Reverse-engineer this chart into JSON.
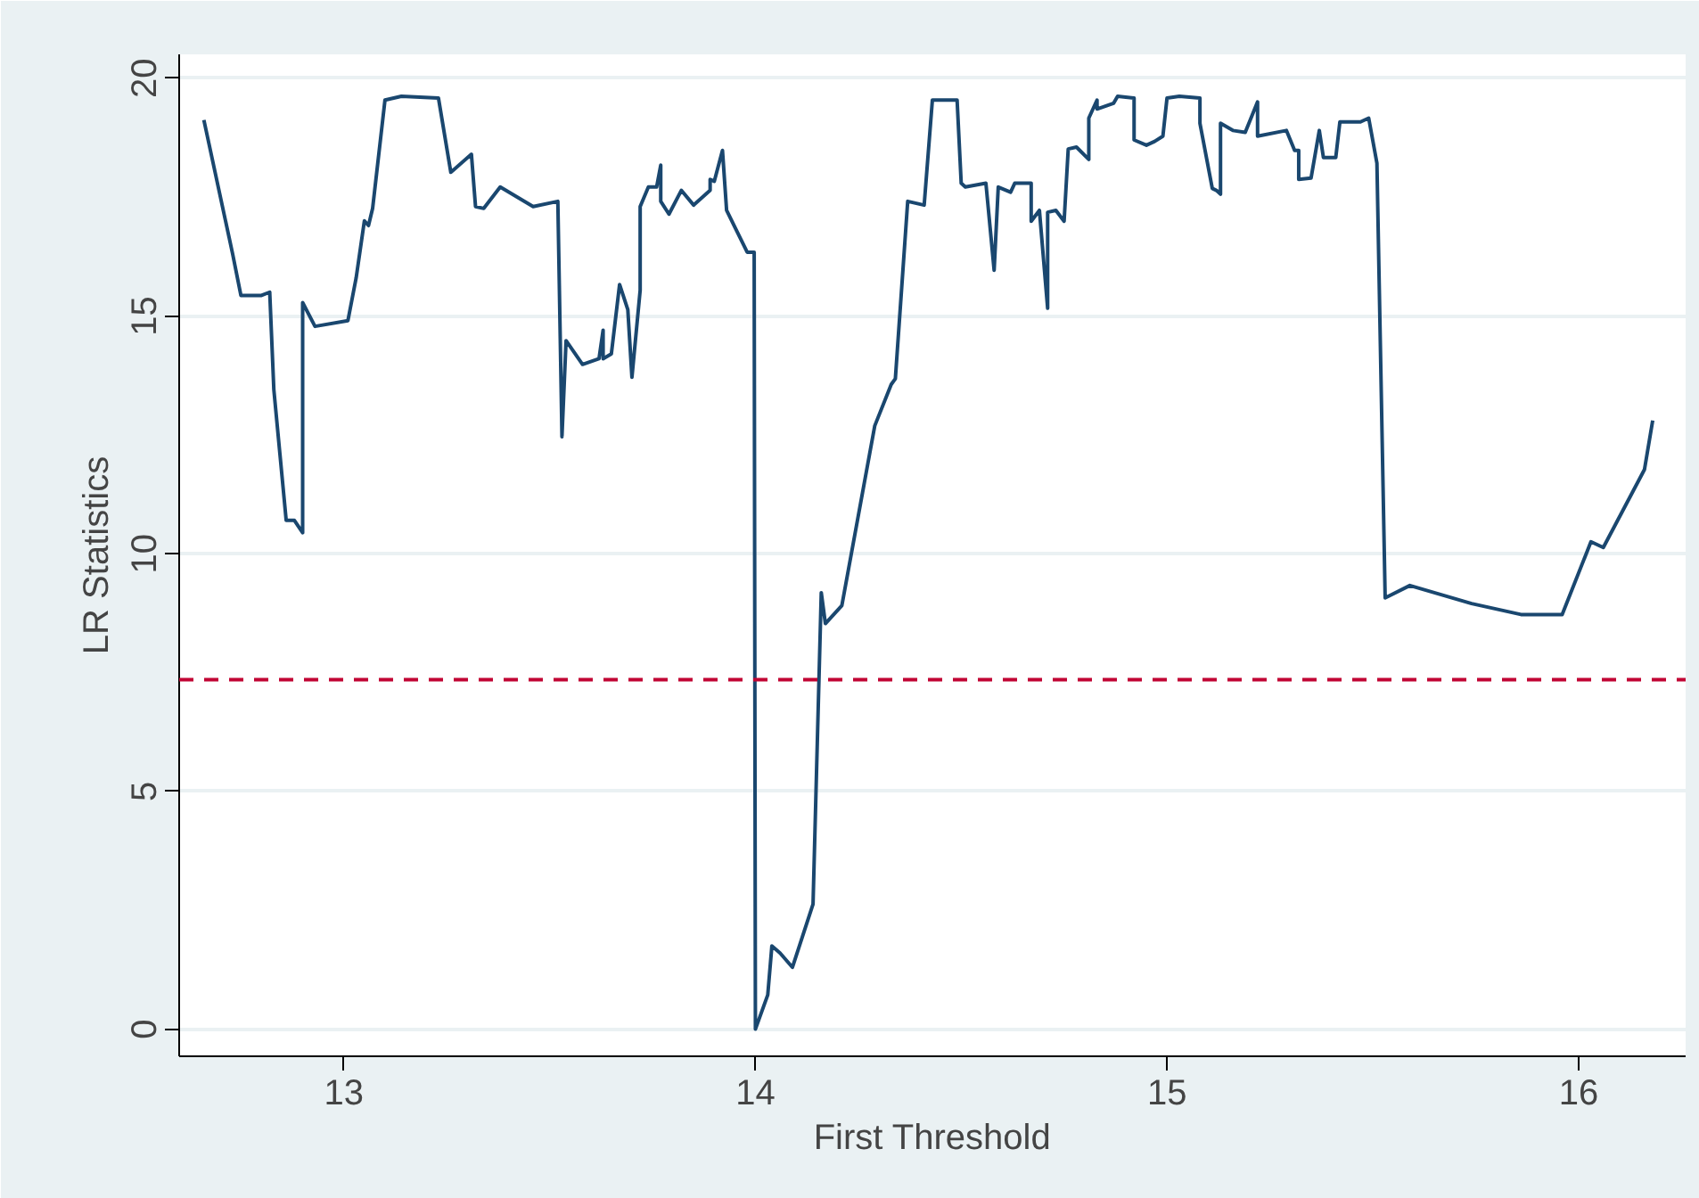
{
  "chart_data": {
    "type": "line",
    "xlabel": "First Threshold",
    "ylabel": "LR Statistics",
    "xlim": [
      12.6,
      16.26
    ],
    "ylim": [
      -0.57,
      20.5
    ],
    "xticks": [
      13,
      14,
      15,
      16
    ],
    "yticks": [
      0,
      5,
      10,
      15,
      20
    ],
    "grid": "y",
    "x": [
      12.66,
      12.73,
      12.75,
      12.8,
      12.82,
      12.83,
      12.86,
      12.88,
      12.9,
      12.9,
      12.93,
      13.01,
      13.03,
      13.05,
      13.06,
      13.07,
      13.1,
      13.14,
      13.23,
      13.26,
      13.31,
      13.32,
      13.34,
      13.38,
      13.46,
      13.52,
      13.53,
      13.54,
      13.58,
      13.62,
      13.63,
      13.63,
      13.65,
      13.67,
      13.69,
      13.7,
      13.72,
      13.72,
      13.74,
      13.76,
      13.77,
      13.77,
      13.79,
      13.82,
      13.85,
      13.89,
      13.89,
      13.9,
      13.92,
      13.93,
      13.98,
      13.997,
      14.0,
      14.03,
      14.04,
      14.06,
      14.09,
      14.14,
      14.16,
      14.17,
      14.21,
      14.29,
      14.33,
      14.34,
      14.37,
      14.41,
      14.43,
      14.49,
      14.5,
      14.51,
      14.56,
      14.58,
      14.59,
      14.62,
      14.63,
      14.67,
      14.67,
      14.69,
      14.71,
      14.71,
      14.73,
      14.75,
      14.76,
      14.78,
      14.81,
      14.81,
      14.83,
      14.83,
      14.87,
      14.88,
      14.92,
      14.92,
      14.95,
      14.97,
      14.99,
      15.0,
      15.03,
      15.08,
      15.08,
      15.11,
      15.12,
      15.13,
      15.13,
      15.16,
      15.19,
      15.22,
      15.22,
      15.29,
      15.31,
      15.32,
      15.32,
      15.35,
      15.37,
      15.38,
      15.41,
      15.42,
      15.47,
      15.49,
      15.51,
      15.53,
      15.59,
      15.74,
      15.86,
      15.96,
      16.03,
      16.06,
      16.16,
      16.18
    ],
    "series": [
      {
        "color": "#1a476f",
        "values": [
          19.12,
          16.3,
          15.43,
          15.43,
          15.5,
          13.45,
          10.7,
          10.7,
          10.44,
          15.28,
          14.78,
          14.9,
          15.8,
          17.0,
          16.9,
          17.26,
          19.54,
          19.62,
          19.58,
          18.02,
          18.4,
          17.3,
          17.26,
          17.71,
          17.3,
          17.41,
          12.46,
          14.48,
          13.98,
          14.1,
          14.7,
          14.1,
          14.2,
          15.66,
          15.13,
          13.71,
          15.54,
          17.3,
          17.71,
          17.71,
          18.17,
          17.41,
          17.14,
          17.64,
          17.33,
          17.64,
          17.87,
          17.83,
          18.48,
          17.22,
          16.34,
          16.34,
          0,
          0.72,
          1.75,
          1.6,
          1.3,
          2.63,
          9.18,
          8.53,
          8.91,
          12.69,
          13.56,
          13.68,
          17.41,
          17.33,
          19.54,
          19.54,
          17.79,
          17.71,
          17.79,
          15.96,
          17.71,
          17.6,
          17.79,
          17.79,
          16.99,
          17.22,
          15.16,
          17.18,
          17.22,
          16.99,
          18.51,
          18.55,
          18.29,
          19.16,
          19.54,
          19.35,
          19.47,
          19.62,
          19.58,
          18.7,
          18.59,
          18.67,
          18.78,
          19.58,
          19.62,
          19.58,
          19.05,
          17.68,
          17.64,
          17.56,
          19.05,
          18.9,
          18.86,
          19.5,
          18.78,
          18.9,
          18.48,
          18.48,
          17.87,
          17.9,
          18.9,
          18.33,
          18.33,
          19.08,
          19.08,
          19.16,
          18.21,
          9.07,
          9.33,
          8.95,
          8.72,
          8.72,
          10.25,
          10.13,
          11.77,
          12.8
        ]
      }
    ],
    "ref_lines": [
      {
        "axis": "y",
        "value": 7.35,
        "color": "#c10534",
        "line_style": "dashed"
      }
    ]
  }
}
